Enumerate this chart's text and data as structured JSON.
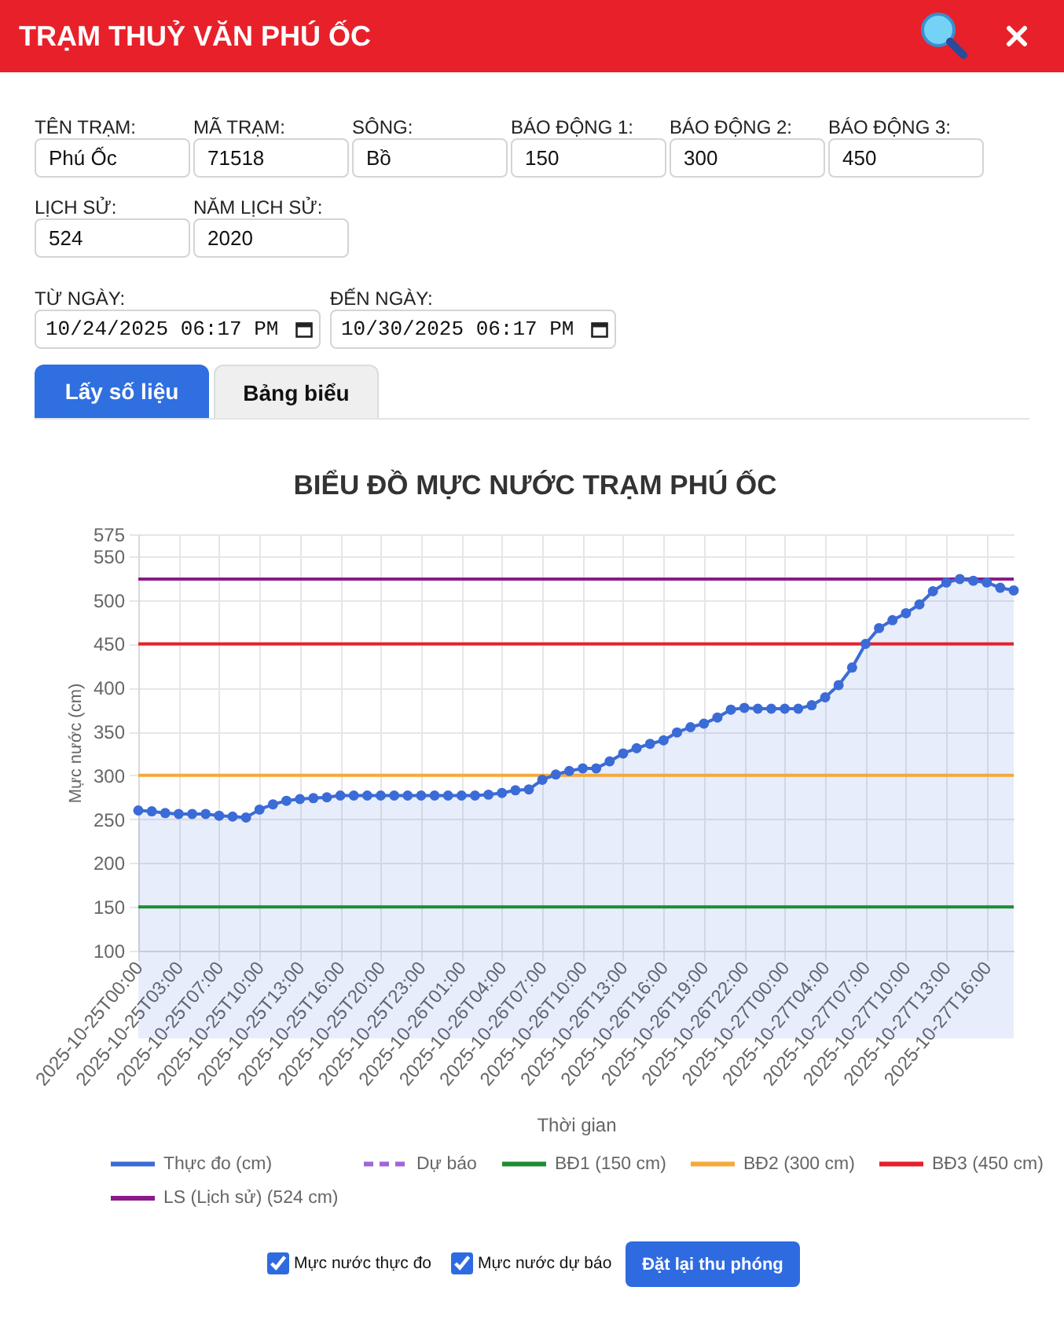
{
  "chart_data": {
    "type": "area",
    "title": "BIỂU ĐỒ MỰC NƯỚC TRẠM PHÚ ỐC",
    "xlabel": "Thời gian",
    "ylabel": "Mực nước (cm)",
    "categories": [
      "2025-10-25T00:00",
      null,
      null,
      "2025-10-25T03:00",
      null,
      null,
      "2025-10-25T07:00",
      null,
      null,
      "2025-10-25T10:00",
      null,
      null,
      "2025-10-25T13:00",
      null,
      null,
      "2025-10-25T16:00",
      null,
      null,
      "2025-10-25T20:00",
      null,
      null,
      "2025-10-25T23:00",
      null,
      null,
      "2025-10-26T01:00",
      null,
      null,
      "2025-10-26T04:00",
      null,
      null,
      "2025-10-26T07:00",
      null,
      null,
      "2025-10-26T10:00",
      null,
      null,
      "2025-10-26T13:00",
      null,
      null,
      "2025-10-26T16:00",
      null,
      null,
      "2025-10-26T19:00",
      null,
      null,
      "2025-10-26T22:00",
      null,
      null,
      "2025-10-27T00:00",
      null,
      null,
      "2025-10-27T04:00",
      null,
      null,
      "2025-10-27T07:00",
      null,
      null,
      "2025-10-27T10:00",
      null,
      null,
      "2025-10-27T13:00",
      null,
      null,
      "2025-10-27T16:00",
      null,
      null
    ],
    "series": [
      {
        "name": "Thực đo (cm)",
        "color": "#3b6bd6",
        "values": [
          260,
          259,
          257,
          256,
          256,
          256,
          254,
          253,
          252,
          261,
          267,
          271,
          273,
          274,
          275,
          277,
          277,
          277,
          277,
          277,
          277,
          277,
          277,
          277,
          277,
          277,
          278,
          280,
          283,
          284,
          295,
          301,
          305,
          308,
          308,
          316,
          325,
          331,
          336,
          340,
          349,
          355,
          359,
          366,
          375,
          377,
          376,
          376,
          376,
          376,
          380,
          389,
          403,
          423,
          450,
          468,
          477,
          485,
          495,
          510,
          520,
          524,
          522,
          520,
          514,
          511
        ]
      },
      {
        "name": "Dự báo",
        "color": "#a066d8",
        "line_style": "dashed",
        "values": [
          null,
          null,
          null,
          null,
          null,
          null,
          null,
          null,
          null,
          null,
          null,
          null,
          null,
          null,
          null,
          null,
          null,
          null,
          null,
          null,
          null,
          null,
          null,
          null,
          null,
          null,
          null,
          null,
          null,
          null,
          null,
          null,
          null,
          null,
          null,
          null,
          null,
          null,
          null,
          null,
          null,
          null,
          null,
          null,
          null,
          null,
          null,
          null,
          null,
          null,
          null,
          null,
          null,
          null,
          null,
          null,
          null,
          null,
          null,
          null,
          null,
          null,
          null,
          null,
          null,
          null
        ]
      }
    ],
    "ylim": [
      100,
      575
    ],
    "yticks": [
      100,
      150,
      200,
      250,
      300,
      350,
      400,
      450,
      500,
      550,
      575
    ],
    "ref_lines": [
      {
        "axis": "y",
        "value": 150,
        "label": "BĐ1 (150 cm)",
        "color": "#1e8c32"
      },
      {
        "axis": "y",
        "value": 300,
        "label": "BĐ2 (300 cm)",
        "color": "#f5a93a"
      },
      {
        "axis": "y",
        "value": 450,
        "label": "BĐ3 (450 cm)",
        "color": "#e4212b"
      },
      {
        "axis": "y",
        "value": 524,
        "label": "LS (Lịch sử) (524 cm)",
        "color": "#8a1a8a"
      }
    ],
    "grid": true,
    "legend": "bottom",
    "marker": "circle",
    "annotations": [
      "TRẠM THUỶ VĂN PHÚ ỐC",
      "TÊN TRẠM:",
      "Phú Ốc",
      "MÃ TRẠM:",
      "71518",
      "SÔNG:",
      "Bồ",
      "BÁO ĐỘNG 1:",
      "150",
      "BÁO ĐỘNG 2:",
      "300",
      "BÁO ĐỘNG 3:",
      "450",
      "LỊCH SỬ:",
      "524",
      "NĂM LỊCH SỬ:",
      "2020",
      "TỪ NGÀY:",
      "10/24/2025 06:17 PM",
      "ĐẾN NGÀY:",
      "10/30/2025 06:17 PM",
      "Lấy số liệu",
      "Bảng biểu",
      "Mực nước thực đo",
      "Mực nước dự báo",
      "Đặt lại thu phóng"
    ]
  }
}
